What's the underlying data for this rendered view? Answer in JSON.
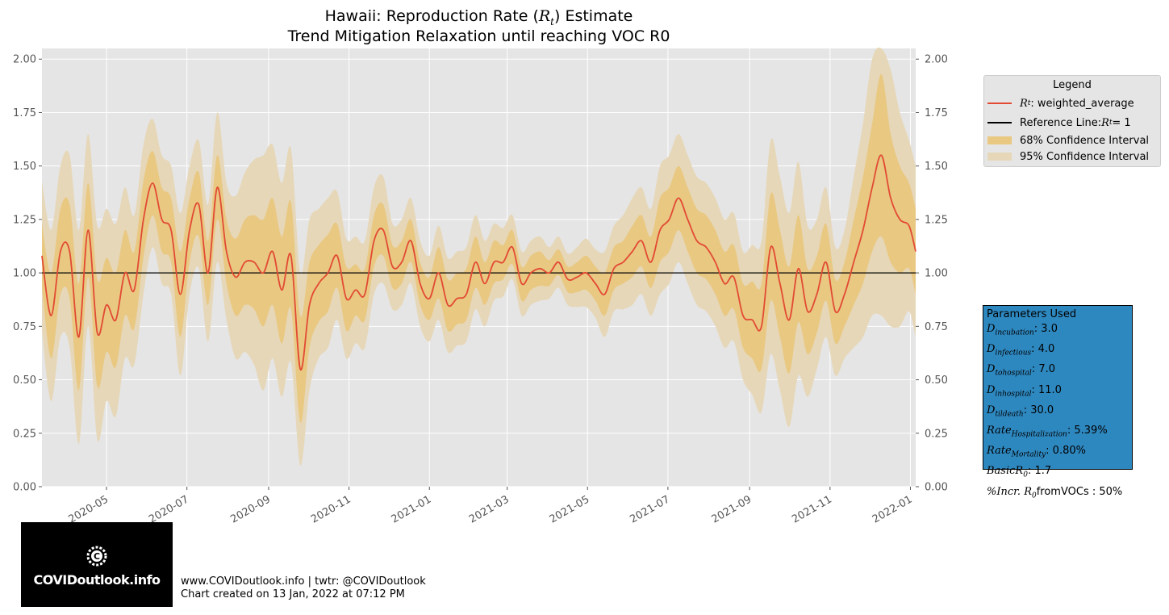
{
  "title": {
    "line1_prefix": "Hawaii: Reproduction Rate (",
    "line1_symbol": "R",
    "line1_sub": "t",
    "line1_suffix": ") Estimate",
    "line2": "Trend Mitigation Relaxation until reaching VOC R0"
  },
  "legend": {
    "title": "Legend",
    "items": [
      {
        "label_symbol": "R",
        "label_sub": "t",
        "label": ": weighted_average",
        "color": "#e24a33",
        "kind": "line"
      },
      {
        "label": "Reference Line: ",
        "label_math": "R",
        "label_math_sub": "t",
        "label_math_tail": " = 1",
        "color": "#000000",
        "kind": "line"
      },
      {
        "label": "68% Confidence Interval",
        "color": "#e9c882",
        "kind": "patch"
      },
      {
        "label": "95% Confidence Interval",
        "color": "#e6d7b8",
        "kind": "patch"
      }
    ]
  },
  "parameters": {
    "header": "Parameters Used",
    "rows": [
      {
        "sym": "D",
        "sub": "incubation",
        "val": ": 3.0"
      },
      {
        "sym": "D",
        "sub": "infectious",
        "val": ": 4.0"
      },
      {
        "sym": "D",
        "sub": "tohospital",
        "val": ": 7.0"
      },
      {
        "sym": "D",
        "sub": "inhospital",
        "val": ": 11.0"
      },
      {
        "sym": "D",
        "sub": "tildeath",
        "val": ": 30.0"
      },
      {
        "sym": "Rate",
        "sub": "Hospitalization",
        "val": ": 5.39%"
      },
      {
        "sym": "Rate",
        "sub": "Mortality",
        "val": ": 0.80%"
      },
      {
        "sym": "BasicR",
        "sub": "0",
        "val": ": 1.7"
      },
      {
        "sym": "%Incr. R",
        "sub": "0",
        "val": "fromVOCs : 50%"
      }
    ],
    "bg_color": "#2e88c0"
  },
  "logo": {
    "text": "COVIDoutlook.info"
  },
  "footer": {
    "line1": "www.COVIDoutlook.info | twtr: @COVIDoutlook",
    "line2": "Chart created on 13 Jan, 2022 at 07:12 PM"
  },
  "chart_data": {
    "type": "line",
    "ylim": [
      0,
      2.05
    ],
    "xlim": [
      "2020-03-13",
      "2022-01-05"
    ],
    "yticks": [
      "0.00",
      "0.25",
      "0.50",
      "0.75",
      "1.00",
      "1.25",
      "1.50",
      "1.75",
      "2.00"
    ],
    "xticks": [
      "2020-05",
      "2020-07",
      "2020-09",
      "2020-11",
      "2021-01",
      "2021-03",
      "2021-05",
      "2021-07",
      "2021-09",
      "2021-11",
      "2022-01"
    ],
    "reference_line": 1.0,
    "grid": true,
    "legend_position": "outside-right",
    "colors": {
      "rt": "#e24a33",
      "ci68": "#e9c882",
      "ci95": "#e6d7b8",
      "bg": "#e5e5e5",
      "ref": "#000000"
    },
    "x": [
      "2020-03-13",
      "2020-03-20",
      "2020-03-27",
      "2020-04-03",
      "2020-04-10",
      "2020-04-17",
      "2020-04-24",
      "2020-05-01",
      "2020-05-08",
      "2020-05-15",
      "2020-05-22",
      "2020-05-29",
      "2020-06-05",
      "2020-06-12",
      "2020-06-19",
      "2020-06-26",
      "2020-07-03",
      "2020-07-10",
      "2020-07-17",
      "2020-07-24",
      "2020-07-31",
      "2020-08-07",
      "2020-08-14",
      "2020-08-21",
      "2020-08-28",
      "2020-09-04",
      "2020-09-11",
      "2020-09-18",
      "2020-09-25",
      "2020-10-02",
      "2020-10-09",
      "2020-10-16",
      "2020-10-23",
      "2020-10-30",
      "2020-11-06",
      "2020-11-13",
      "2020-11-20",
      "2020-11-27",
      "2020-12-04",
      "2020-12-11",
      "2020-12-18",
      "2020-12-25",
      "2021-01-01",
      "2021-01-08",
      "2021-01-15",
      "2021-01-22",
      "2021-01-29",
      "2021-02-05",
      "2021-02-12",
      "2021-02-19",
      "2021-02-26",
      "2021-03-05",
      "2021-03-12",
      "2021-03-19",
      "2021-03-26",
      "2021-04-02",
      "2021-04-09",
      "2021-04-16",
      "2021-04-23",
      "2021-04-30",
      "2021-05-07",
      "2021-05-14",
      "2021-05-21",
      "2021-05-28",
      "2021-06-04",
      "2021-06-11",
      "2021-06-18",
      "2021-06-25",
      "2021-07-02",
      "2021-07-09",
      "2021-07-16",
      "2021-07-23",
      "2021-07-30",
      "2021-08-06",
      "2021-08-13",
      "2021-08-20",
      "2021-08-27",
      "2021-09-03",
      "2021-09-10",
      "2021-09-17",
      "2021-09-24",
      "2021-10-01",
      "2021-10-08",
      "2021-10-15",
      "2021-10-22",
      "2021-10-29",
      "2021-11-05",
      "2021-11-12",
      "2021-11-19",
      "2021-11-26",
      "2021-12-03",
      "2021-12-10",
      "2021-12-17",
      "2021-12-24",
      "2021-12-31",
      "2022-01-05"
    ],
    "series": [
      {
        "name": "weighted_average",
        "values": [
          1.08,
          0.8,
          1.1,
          1.1,
          0.7,
          1.2,
          0.72,
          0.85,
          0.78,
          1.0,
          0.92,
          1.25,
          1.42,
          1.25,
          1.2,
          0.9,
          1.2,
          1.32,
          1.0,
          1.4,
          1.1,
          0.98,
          1.05,
          1.05,
          1.0,
          1.1,
          0.92,
          1.08,
          0.55,
          0.85,
          0.95,
          1.0,
          1.08,
          0.88,
          0.92,
          0.9,
          1.15,
          1.2,
          1.03,
          1.05,
          1.15,
          0.95,
          0.88,
          1.0,
          0.85,
          0.88,
          0.9,
          1.05,
          0.95,
          1.05,
          1.05,
          1.12,
          0.95,
          1.0,
          1.02,
          1.0,
          1.05,
          0.97,
          0.98,
          1.0,
          0.95,
          0.9,
          1.02,
          1.05,
          1.1,
          1.15,
          1.05,
          1.2,
          1.25,
          1.35,
          1.25,
          1.15,
          1.12,
          1.05,
          0.95,
          0.98,
          0.8,
          0.78,
          0.75,
          1.12,
          0.95,
          0.78,
          1.02,
          0.82,
          0.9,
          1.05,
          0.82,
          0.9,
          1.05,
          1.2,
          1.4,
          1.55,
          1.35,
          1.25,
          1.22,
          1.1
        ]
      }
    ],
    "ci68_half": [
      0.15,
      0.2,
      0.2,
      0.22,
      0.25,
      0.22,
      0.25,
      0.22,
      0.22,
      0.2,
      0.18,
      0.18,
      0.15,
      0.15,
      0.15,
      0.2,
      0.15,
      0.15,
      0.15,
      0.15,
      0.15,
      0.18,
      0.2,
      0.22,
      0.25,
      0.25,
      0.25,
      0.25,
      0.25,
      0.2,
      0.18,
      0.18,
      0.15,
      0.15,
      0.12,
      0.12,
      0.12,
      0.12,
      0.1,
      0.1,
      0.1,
      0.1,
      0.1,
      0.12,
      0.12,
      0.12,
      0.12,
      0.12,
      0.1,
      0.1,
      0.08,
      0.08,
      0.08,
      0.08,
      0.08,
      0.06,
      0.06,
      0.06,
      0.07,
      0.08,
      0.08,
      0.1,
      0.1,
      0.1,
      0.12,
      0.12,
      0.12,
      0.15,
      0.15,
      0.15,
      0.15,
      0.15,
      0.15,
      0.15,
      0.15,
      0.15,
      0.15,
      0.18,
      0.2,
      0.25,
      0.25,
      0.25,
      0.25,
      0.2,
      0.18,
      0.18,
      0.15,
      0.15,
      0.2,
      0.25,
      0.3,
      0.38,
      0.3,
      0.25,
      0.2,
      0.2
    ],
    "ci95_half": [
      0.35,
      0.4,
      0.4,
      0.45,
      0.5,
      0.45,
      0.5,
      0.45,
      0.45,
      0.4,
      0.35,
      0.35,
      0.3,
      0.3,
      0.3,
      0.38,
      0.3,
      0.3,
      0.32,
      0.35,
      0.32,
      0.38,
      0.42,
      0.48,
      0.55,
      0.5,
      0.5,
      0.5,
      0.45,
      0.4,
      0.35,
      0.35,
      0.3,
      0.28,
      0.25,
      0.25,
      0.25,
      0.25,
      0.2,
      0.2,
      0.2,
      0.2,
      0.2,
      0.22,
      0.22,
      0.22,
      0.22,
      0.22,
      0.2,
      0.18,
      0.16,
      0.15,
      0.15,
      0.15,
      0.15,
      0.12,
      0.12,
      0.12,
      0.14,
      0.16,
      0.16,
      0.2,
      0.2,
      0.22,
      0.25,
      0.25,
      0.25,
      0.3,
      0.3,
      0.3,
      0.3,
      0.3,
      0.3,
      0.3,
      0.3,
      0.3,
      0.3,
      0.35,
      0.4,
      0.5,
      0.5,
      0.5,
      0.5,
      0.4,
      0.35,
      0.35,
      0.3,
      0.3,
      0.4,
      0.5,
      0.6,
      0.75,
      0.6,
      0.5,
      0.4,
      0.4
    ]
  }
}
